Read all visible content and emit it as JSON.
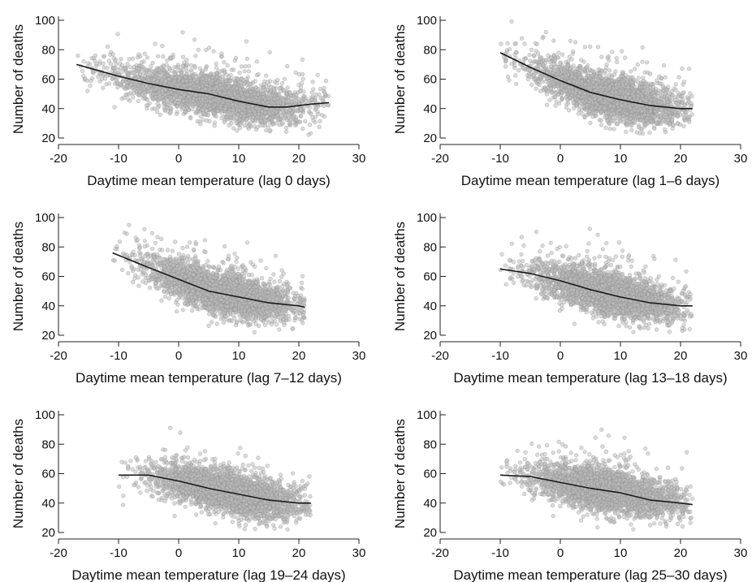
{
  "chart_data": [
    {
      "type": "scatter",
      "panel": "lag 0",
      "xlabel": "Daytime mean temperature (lag 0 days)",
      "ylabel": "Number of deaths",
      "xlim": [
        -20,
        30
      ],
      "ylim": [
        20,
        100
      ],
      "xticks": [
        -20,
        -10,
        0,
        10,
        20,
        30
      ],
      "yticks": [
        20,
        40,
        60,
        80,
        100
      ],
      "points": {
        "count": 3000,
        "x_range": [
          -17,
          25
        ],
        "y_spread": 7,
        "seed": 11
      },
      "smooth": {
        "x": [
          -17,
          -10,
          -5,
          0,
          5,
          10,
          15,
          18,
          20,
          22,
          25
        ],
        "y": [
          70,
          62,
          57,
          53,
          50,
          45,
          41,
          41,
          42,
          43,
          44
        ]
      }
    },
    {
      "type": "scatter",
      "panel": "lag 1–6",
      "xlabel": "Daytime mean temperature (lag 1–6 days)",
      "ylabel": "Number of deaths",
      "xlim": [
        -20,
        30
      ],
      "ylim": [
        20,
        100
      ],
      "xticks": [
        -20,
        -10,
        0,
        10,
        20,
        30
      ],
      "yticks": [
        20,
        40,
        60,
        80,
        100
      ],
      "points": {
        "count": 3000,
        "x_range": [
          -10,
          22
        ],
        "y_spread": 7,
        "seed": 23
      },
      "smooth": {
        "x": [
          -10,
          -5,
          0,
          5,
          10,
          15,
          20,
          22
        ],
        "y": [
          78,
          68,
          59,
          51,
          46,
          42,
          40,
          40
        ]
      }
    },
    {
      "type": "scatter",
      "panel": "lag 7–12",
      "xlabel": "Daytime mean temperature (lag 7–12 days)",
      "ylabel": "Number of deaths",
      "xlim": [
        -20,
        30
      ],
      "ylim": [
        20,
        100
      ],
      "xticks": [
        -20,
        -10,
        0,
        10,
        20,
        30
      ],
      "yticks": [
        20,
        40,
        60,
        80,
        100
      ],
      "points": {
        "count": 3000,
        "x_range": [
          -11,
          21
        ],
        "y_spread": 7,
        "seed": 37
      },
      "smooth": {
        "x": [
          -11,
          -5,
          0,
          5,
          10,
          15,
          20,
          21
        ],
        "y": [
          76,
          66,
          58,
          50,
          46,
          42,
          40,
          39
        ]
      }
    },
    {
      "type": "scatter",
      "panel": "lag 13–18",
      "xlabel": "Daytime mean temperature (lag 13–18 days)",
      "ylabel": "Number of deaths",
      "xlim": [
        -20,
        30
      ],
      "ylim": [
        20,
        100
      ],
      "xticks": [
        -20,
        -10,
        0,
        10,
        20,
        30
      ],
      "yticks": [
        20,
        40,
        60,
        80,
        100
      ],
      "points": {
        "count": 3000,
        "x_range": [
          -10,
          22
        ],
        "y_spread": 7,
        "seed": 41
      },
      "smooth": {
        "x": [
          -10,
          -5,
          0,
          5,
          10,
          15,
          20,
          22
        ],
        "y": [
          65,
          62,
          57,
          51,
          46,
          42,
          40,
          40
        ]
      }
    },
    {
      "type": "scatter",
      "panel": "lag 19–24",
      "xlabel": "Daytime mean temperature (lag 19–24 days)",
      "ylabel": "Number of deaths",
      "xlim": [
        -20,
        30
      ],
      "ylim": [
        20,
        100
      ],
      "xticks": [
        -20,
        -10,
        0,
        10,
        20,
        30
      ],
      "yticks": [
        20,
        40,
        60,
        80,
        100
      ],
      "points": {
        "count": 3000,
        "x_range": [
          -10,
          22
        ],
        "y_spread": 7,
        "seed": 53
      },
      "smooth": {
        "x": [
          -10,
          -5,
          0,
          5,
          10,
          15,
          20,
          22
        ],
        "y": [
          59,
          59,
          55,
          50,
          46,
          42,
          40,
          40
        ]
      }
    },
    {
      "type": "scatter",
      "panel": "lag 25–30",
      "xlabel": "Daytime mean temperature (lag 25–30 days)",
      "ylabel": "Number of deaths",
      "xlim": [
        -20,
        30
      ],
      "ylim": [
        20,
        100
      ],
      "xticks": [
        -20,
        -10,
        0,
        10,
        20,
        30
      ],
      "yticks": [
        20,
        40,
        60,
        80,
        100
      ],
      "points": {
        "count": 3000,
        "x_range": [
          -10,
          22
        ],
        "y_spread": 7,
        "seed": 67
      },
      "smooth": {
        "x": [
          -10,
          -5,
          0,
          5,
          10,
          15,
          20,
          22
        ],
        "y": [
          59,
          58,
          54,
          50,
          47,
          42,
          40,
          39
        ]
      }
    }
  ]
}
